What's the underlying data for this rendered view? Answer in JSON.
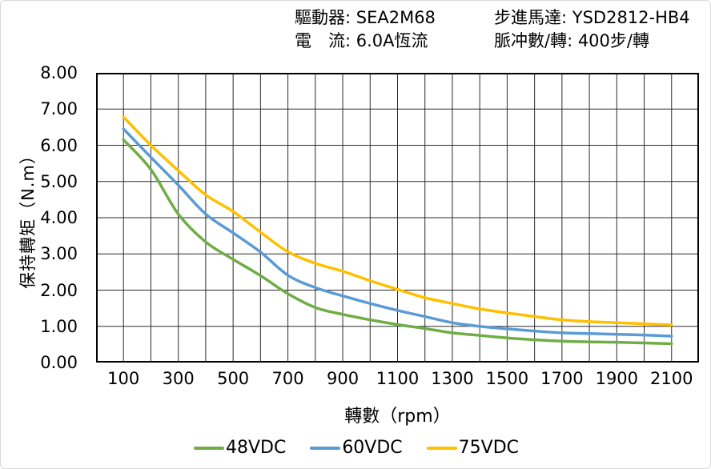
{
  "header": {
    "driver": "驅動器: SEA2M68",
    "motor": "步進馬達: YSD2812-HB4",
    "current": "電　流: 6.0A恆流",
    "pulses_per_rev": "脈冲數/轉: 400步/轉"
  },
  "chart_data": {
    "type": "line",
    "title": "",
    "xlabel": "轉數（rpm）",
    "ylabel": "保持轉矩（N.m）",
    "x": [
      100,
      200,
      300,
      400,
      500,
      600,
      700,
      800,
      900,
      1000,
      1100,
      1200,
      1300,
      1400,
      1500,
      1600,
      1700,
      1800,
      1900,
      2000,
      2100
    ],
    "series": [
      {
        "name": "48VDC",
        "color": "#70AD47",
        "values": [
          6.15,
          5.33,
          4.1,
          3.33,
          2.85,
          2.4,
          1.9,
          1.52,
          1.33,
          1.18,
          1.05,
          0.94,
          0.82,
          0.75,
          0.68,
          0.63,
          0.59,
          0.57,
          0.56,
          0.54,
          0.52
        ]
      },
      {
        "name": "60VDC",
        "color": "#5B9BD5",
        "values": [
          6.45,
          5.67,
          4.9,
          4.1,
          3.58,
          3.05,
          2.41,
          2.07,
          1.84,
          1.63,
          1.44,
          1.27,
          1.1,
          1.0,
          0.93,
          0.87,
          0.82,
          0.8,
          0.78,
          0.76,
          0.73
        ]
      },
      {
        "name": "75VDC",
        "color": "#FFC000",
        "values": [
          6.78,
          6.0,
          5.3,
          4.63,
          4.17,
          3.6,
          3.06,
          2.74,
          2.52,
          2.26,
          2.02,
          1.79,
          1.63,
          1.48,
          1.37,
          1.27,
          1.18,
          1.13,
          1.1,
          1.07,
          1.04
        ]
      }
    ],
    "xlim": [
      0,
      2200
    ],
    "ylim": [
      0,
      8
    ],
    "x_grid_step": 100,
    "y_grid_step": 1,
    "x_ticks": [
      "100",
      "300",
      "500",
      "700",
      "900",
      "1100",
      "1300",
      "1500",
      "1700",
      "1900",
      "2100"
    ],
    "x_tick_values": [
      100,
      300,
      500,
      700,
      900,
      1100,
      1300,
      1500,
      1700,
      1900,
      2100
    ],
    "y_ticks": [
      "8.00",
      "7.00",
      "6.00",
      "5.00",
      "4.00",
      "3.00",
      "2.00",
      "1.00",
      "0.00"
    ],
    "y_tick_values": [
      8,
      7,
      6,
      5,
      4,
      3,
      2,
      1,
      0
    ],
    "grid": true,
    "legend_position": "bottom",
    "grid_color": "#2b2b2b",
    "border_color": "#000000"
  }
}
